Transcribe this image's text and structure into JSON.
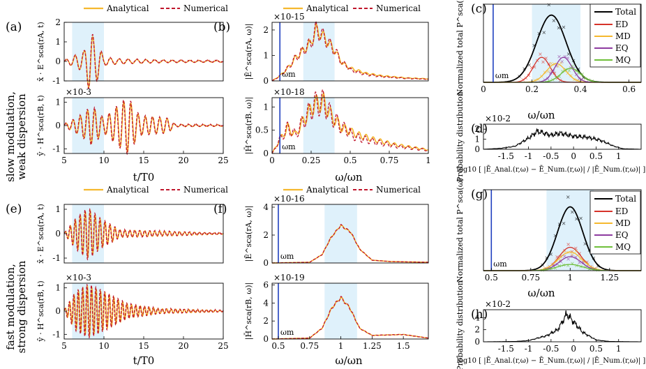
{
  "figure": {
    "row_labels": {
      "top": [
        "slow modulation,",
        "weak dispersion"
      ],
      "bottom": [
        "fast modulation,",
        "strong dispersion"
      ]
    },
    "legend_pair": {
      "analytical": "Analytical",
      "numerical": "Numerical"
    },
    "legend_multi": [
      "Total",
      "ED",
      "MD",
      "EQ",
      "MQ"
    ],
    "colors": {
      "analytical": "#f5b82e",
      "numerical": "#c0162c",
      "band": "#dff1fb",
      "omega_m": "#1f3fbf",
      "ED": "#d6332a",
      "MD": "#f5b82e",
      "EQ": "#8e3ba0",
      "MQ": "#6fbf3a",
      "Total": "#000000"
    },
    "omega_m_label": "ωm",
    "xlabel_time": "t/T0",
    "xlabel_freq": "ω/ωn",
    "xlabel_err": "log10 [ |Ē_Anal.(r,ω) − Ē_Num.(r,ω)| / |Ē_Num.(r,ω)| ]"
  },
  "chart_data": [
    {
      "id": "a",
      "panel_label": "(a)",
      "type": "line",
      "ylabel": "x̂ · E^sca(rA, t)",
      "ylim": [
        -1,
        2
      ],
      "xlim": [
        5,
        25
      ],
      "yticks": [
        "-1",
        "0",
        "1",
        "2"
      ],
      "xticks": [],
      "exponent": "",
      "band": [
        6,
        10
      ],
      "series": [
        {
          "name": "Analytical"
        },
        {
          "name": "Numerical"
        }
      ],
      "envelope": [
        {
          "t": 5,
          "amp": 0.04
        },
        {
          "t": 7.5,
          "amp": 0.5
        },
        {
          "t": 8.2,
          "amp": 1.5
        },
        {
          "t": 9.2,
          "amp": 0.9
        },
        {
          "t": 10,
          "amp": 0.2
        },
        {
          "t": 12,
          "amp": 0.12
        },
        {
          "t": 18,
          "amp": 0.06
        },
        {
          "t": 25,
          "amp": 0.04
        }
      ]
    },
    {
      "id": "a2",
      "panel_label": "",
      "type": "line",
      "ylabel": "ŷ · H^sca(rB, t)",
      "ylim": [
        -1.2,
        1.2
      ],
      "xlim": [
        5,
        25
      ],
      "yticks": [
        "-1",
        "0",
        "1"
      ],
      "xticks": [
        "5",
        "10",
        "15",
        "20",
        "25"
      ],
      "exponent": "×10^-3",
      "band": [
        6,
        10
      ],
      "series": [
        {
          "name": "Analytical"
        },
        {
          "name": "Numerical"
        }
      ],
      "envelope": [
        {
          "t": 5,
          "amp": 0.05
        },
        {
          "t": 7,
          "amp": 0.4
        },
        {
          "t": 8.5,
          "amp": 0.8
        },
        {
          "t": 10,
          "amp": 0.3
        },
        {
          "t": 12,
          "amp": 0.9
        },
        {
          "t": 13,
          "amp": 1.15
        },
        {
          "t": 14.5,
          "amp": 0.4
        },
        {
          "t": 18,
          "amp": 0.3
        },
        {
          "t": 19,
          "amp": 0.05
        },
        {
          "t": 25,
          "amp": 0.03
        }
      ]
    },
    {
      "id": "b",
      "panel_label": "(b)",
      "type": "line",
      "ylabel": "|Ē^sca(rA, ω)|",
      "ylim": [
        0,
        2.3
      ],
      "xlim": [
        0,
        1
      ],
      "yticks": [
        "0",
        "1",
        "2"
      ],
      "xticks": [],
      "exponent": "×10^-15",
      "band": [
        0.2,
        0.4
      ],
      "omega_m": 0.05,
      "series": [
        {
          "name": "Analytical"
        },
        {
          "name": "Numerical"
        }
      ],
      "spectrum": [
        [
          0.0,
          0.0
        ],
        [
          0.05,
          0.2
        ],
        [
          0.1,
          0.5
        ],
        [
          0.15,
          0.9
        ],
        [
          0.2,
          1.2
        ],
        [
          0.25,
          1.5
        ],
        [
          0.28,
          2.0
        ],
        [
          0.32,
          1.8
        ],
        [
          0.4,
          1.2
        ],
        [
          0.45,
          0.7
        ],
        [
          0.5,
          0.5
        ],
        [
          0.6,
          0.3
        ],
        [
          0.7,
          0.2
        ],
        [
          0.85,
          0.12
        ],
        [
          1.0,
          0.08
        ]
      ]
    },
    {
      "id": "b2",
      "panel_label": "",
      "type": "line",
      "ylabel": "|H̄^sca(rB, ω)|",
      "ylim": [
        0,
        1.2
      ],
      "xlim": [
        0,
        1
      ],
      "yticks": [
        "0",
        "0.5",
        "1"
      ],
      "xticks": [
        "0",
        "0.25",
        "0.5",
        "0.75",
        "1"
      ],
      "exponent": "×10^-18",
      "band": [
        0.2,
        0.4
      ],
      "omega_m": 0.05,
      "series": [
        {
          "name": "Analytical"
        },
        {
          "name": "Numerical"
        }
      ],
      "spectrum": [
        [
          0.0,
          0.0
        ],
        [
          0.05,
          0.3
        ],
        [
          0.1,
          0.55
        ],
        [
          0.15,
          0.4
        ],
        [
          0.2,
          0.7
        ],
        [
          0.27,
          1.05
        ],
        [
          0.33,
          1.1
        ],
        [
          0.38,
          0.8
        ],
        [
          0.45,
          0.55
        ],
        [
          0.55,
          0.4
        ],
        [
          0.65,
          0.3
        ],
        [
          0.8,
          0.18
        ],
        [
          1.0,
          0.08
        ]
      ]
    },
    {
      "id": "c",
      "panel_label": "(c)",
      "type": "line",
      "ylabel": "Normalized total P^sca(ω)",
      "ylim": [
        0,
        2.5
      ],
      "xlim": [
        0,
        0.65
      ],
      "yticks": [],
      "xticks": [
        "0",
        "0.2",
        "0.4",
        "0.6"
      ],
      "band": [
        0.2,
        0.4
      ],
      "omega_m": 0.04,
      "curves": [
        {
          "name": "Total",
          "peak": 0.28,
          "height": 2.15,
          "width": 0.06
        },
        {
          "name": "ED",
          "peak": 0.24,
          "height": 0.8,
          "width": 0.035
        },
        {
          "name": "MD",
          "peak": 0.3,
          "height": 0.6,
          "width": 0.04
        },
        {
          "name": "EQ",
          "peak": 0.33,
          "height": 0.8,
          "width": 0.035
        },
        {
          "name": "MQ",
          "peak": 0.36,
          "height": 0.45,
          "width": 0.04
        }
      ]
    },
    {
      "id": "d",
      "panel_label": "(d)",
      "type": "line",
      "ylabel": "Probability distribution",
      "ylim": [
        0,
        2.5
      ],
      "xlim": [
        -2,
        1.5
      ],
      "yticks": [
        "0",
        "1",
        "2"
      ],
      "xticks": [
        "-1.5",
        "-1",
        "-0.5",
        "0",
        "0.5",
        "1"
      ],
      "exponent": "×10^-2",
      "profile": [
        [
          -2,
          0
        ],
        [
          -1.6,
          0.1
        ],
        [
          -1.3,
          0.3
        ],
        [
          -1.0,
          1.1
        ],
        [
          -0.8,
          1.8
        ],
        [
          -0.5,
          1.4
        ],
        [
          -0.3,
          1.6
        ],
        [
          0.0,
          1.3
        ],
        [
          0.3,
          1.2
        ],
        [
          0.6,
          0.9
        ],
        [
          0.9,
          0.3
        ],
        [
          1.1,
          0.05
        ],
        [
          1.5,
          0
        ]
      ]
    },
    {
      "id": "e",
      "panel_label": "(e)",
      "type": "line",
      "ylabel": "x̂ · E^sca(rA, t)",
      "ylim": [
        -1.2,
        1.2
      ],
      "xlim": [
        5,
        25
      ],
      "yticks": [
        "-1",
        "0",
        "1"
      ],
      "xticks": [],
      "exponent": "",
      "band": [
        6,
        10
      ],
      "series": [
        {
          "name": "Analytical"
        },
        {
          "name": "Numerical"
        }
      ],
      "envelope": [
        {
          "t": 5,
          "amp": 0.02
        },
        {
          "t": 6.5,
          "amp": 0.6
        },
        {
          "t": 8,
          "amp": 1.0
        },
        {
          "t": 9.5,
          "amp": 0.6
        },
        {
          "t": 12,
          "amp": 0.15
        },
        {
          "t": 25,
          "amp": 0.02
        }
      ]
    },
    {
      "id": "e2",
      "panel_label": "",
      "type": "line",
      "ylabel": "ŷ · H^sca(rB, t)",
      "ylim": [
        -1.2,
        1.2
      ],
      "xlim": [
        5,
        25
      ],
      "yticks": [
        "-1",
        "0",
        "1"
      ],
      "xticks": [
        "5",
        "10",
        "15",
        "20",
        "25"
      ],
      "exponent": "×10^-3",
      "band": [
        6,
        10
      ],
      "series": [
        {
          "name": "Analytical"
        },
        {
          "name": "Numerical"
        }
      ],
      "envelope": [
        {
          "t": 5,
          "amp": 0.05
        },
        {
          "t": 6.5,
          "amp": 0.8
        },
        {
          "t": 8,
          "amp": 1.1
        },
        {
          "t": 10,
          "amp": 0.8
        },
        {
          "t": 13,
          "amp": 0.3
        },
        {
          "t": 17,
          "amp": 0.1
        },
        {
          "t": 25,
          "amp": 0.03
        }
      ]
    },
    {
      "id": "f",
      "panel_label": "(f)",
      "type": "line",
      "ylabel": "|Ē^sca(rA, ω)|",
      "ylim": [
        0,
        4.2
      ],
      "xlim": [
        0.45,
        1.7
      ],
      "yticks": [
        "0",
        "2",
        "4"
      ],
      "xticks": [],
      "exponent": "×10^-16",
      "band": [
        0.87,
        1.13
      ],
      "omega_m": 0.5,
      "series": [
        {
          "name": "Analytical"
        },
        {
          "name": "Numerical"
        }
      ],
      "spectrum": [
        [
          0.45,
          0.0
        ],
        [
          0.75,
          0.05
        ],
        [
          0.85,
          0.6
        ],
        [
          0.92,
          1.8
        ],
        [
          1.0,
          2.7
        ],
        [
          1.08,
          2.2
        ],
        [
          1.15,
          1.0
        ],
        [
          1.25,
          0.2
        ],
        [
          1.4,
          0.1
        ],
        [
          1.7,
          0.05
        ]
      ]
    },
    {
      "id": "f2",
      "panel_label": "",
      "type": "line",
      "ylabel": "|H̄^sca(rB, ω)|",
      "ylim": [
        0,
        6.2
      ],
      "xlim": [
        0.45,
        1.7
      ],
      "yticks": [
        "0",
        "2",
        "4",
        "6"
      ],
      "xticks": [
        "0.5",
        "0.75",
        "1",
        "1.25",
        "1.5"
      ],
      "exponent": "×10^-19",
      "band": [
        0.87,
        1.13
      ],
      "omega_m": 0.5,
      "series": [
        {
          "name": "Analytical"
        },
        {
          "name": "Numerical"
        }
      ],
      "spectrum": [
        [
          0.45,
          0.0
        ],
        [
          0.75,
          0.1
        ],
        [
          0.85,
          1.2
        ],
        [
          0.93,
          3.5
        ],
        [
          1.0,
          4.6
        ],
        [
          1.07,
          3.5
        ],
        [
          1.15,
          1.2
        ],
        [
          1.25,
          0.4
        ],
        [
          1.5,
          0.5
        ],
        [
          1.7,
          0.1
        ]
      ]
    },
    {
      "id": "g",
      "panel_label": "(g)",
      "type": "line",
      "ylabel": "Normalized total P^sca(ω)",
      "ylim": [
        0,
        2.6
      ],
      "xlim": [
        0.45,
        1.45
      ],
      "yticks": [],
      "xticks": [
        "0.5",
        "0.75",
        "1",
        "1.25"
      ],
      "band": [
        0.85,
        1.15
      ],
      "omega_m": 0.5,
      "curves": [
        {
          "name": "Total",
          "peak": 1.0,
          "height": 2.05,
          "width": 0.08
        },
        {
          "name": "ED",
          "peak": 1.0,
          "height": 0.75,
          "width": 0.07
        },
        {
          "name": "MD",
          "peak": 1.0,
          "height": 0.6,
          "width": 0.075
        },
        {
          "name": "EQ",
          "peak": 1.0,
          "height": 0.45,
          "width": 0.07
        },
        {
          "name": "MQ",
          "peak": 1.0,
          "height": 0.2,
          "width": 0.08
        }
      ]
    },
    {
      "id": "h",
      "panel_label": "(h)",
      "type": "line",
      "ylabel": "Probability distribution",
      "ylim": [
        0,
        5.3
      ],
      "xlim": [
        -2,
        1.5
      ],
      "yticks": [
        "0",
        "2",
        "4"
      ],
      "xticks": [
        "-1.5",
        "-1",
        "-0.5",
        "0",
        "0.5",
        "1"
      ],
      "exponent": "×10^-2",
      "profile": [
        [
          -2,
          0
        ],
        [
          -1.3,
          0.05
        ],
        [
          -1.0,
          0.2
        ],
        [
          -0.6,
          1.0
        ],
        [
          -0.35,
          2.0
        ],
        [
          -0.15,
          4.6
        ],
        [
          0.0,
          3.3
        ],
        [
          0.2,
          1.6
        ],
        [
          0.5,
          0.3
        ],
        [
          0.8,
          0.05
        ],
        [
          1.5,
          0
        ]
      ]
    }
  ]
}
